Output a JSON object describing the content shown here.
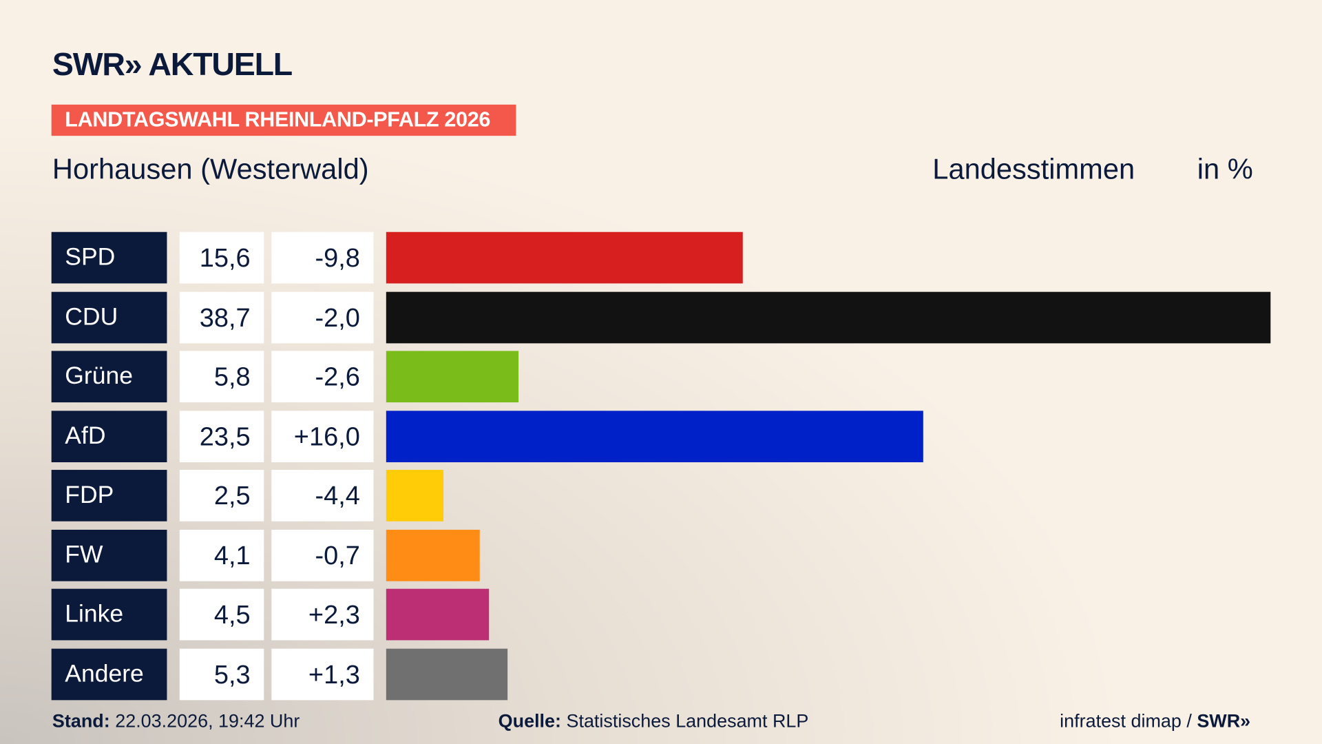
{
  "brand": {
    "logo": "SWR» AKTUELL"
  },
  "tag": "LANDTAGSWAHL RHEINLAND-PFALZ 2026",
  "place": "Horhausen (Westerwald)",
  "metric": "Landesstimmen",
  "unit": "in %",
  "chart_data": {
    "type": "bar",
    "orientation": "horizontal",
    "categories": [
      "SPD",
      "CDU",
      "Grüne",
      "AfD",
      "FDP",
      "FW",
      "Linke",
      "Andere"
    ],
    "values": [
      15.6,
      38.7,
      5.8,
      23.5,
      2.5,
      4.1,
      4.5,
      5.3
    ],
    "value_labels": [
      "15,6",
      "38,7",
      "5,8",
      "23,5",
      "2,5",
      "4,1",
      "4,5",
      "5,3"
    ],
    "diff_labels": [
      "-9,8",
      "-2,0",
      "-2,6",
      "+16,0",
      "-4,4",
      "-0,7",
      "+2,3",
      "+1,3"
    ],
    "diffs": [
      -9.8,
      -2.0,
      -2.6,
      16.0,
      -4.4,
      -0.7,
      2.3,
      1.3
    ],
    "colors": [
      "#d71f1f",
      "#121212",
      "#7abd1b",
      "#0020c8",
      "#ffcc07",
      "#ff8c14",
      "#bc2f75",
      "#707070"
    ],
    "grid": false
  },
  "footer": {
    "stand_label": "Stand:",
    "stand_value": "22.03.2026, 19:42 Uhr",
    "source_label": "Quelle:",
    "source_value": "Statistisches Landesamt RLP",
    "credit": "infratest dimap /",
    "credit_logo": "SWR»"
  }
}
